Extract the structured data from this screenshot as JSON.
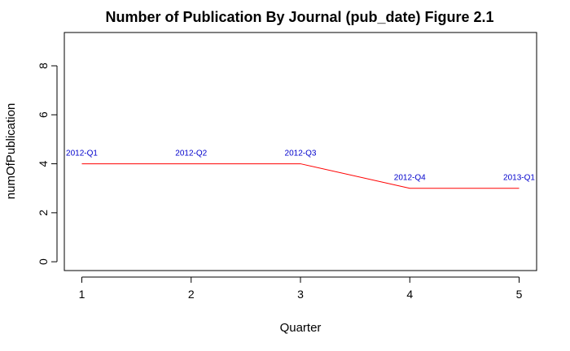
{
  "chart_data": {
    "type": "line",
    "title": "Number of Publication By Journal (pub_date) Figure 2.1",
    "xlabel": "Quarter",
    "ylabel": "numOfPublication",
    "x": [
      1,
      2,
      3,
      4,
      5
    ],
    "values": [
      4,
      4,
      4,
      3,
      3
    ],
    "point_labels": [
      "2012-Q1",
      "2012-Q2",
      "2012-Q3",
      "2012-Q4",
      "2013-Q1"
    ],
    "x_ticks": [
      1,
      2,
      3,
      4,
      5
    ],
    "x_tick_labels": [
      "1",
      "2",
      "3",
      "4",
      "5"
    ],
    "y_ticks": [
      0,
      2,
      4,
      6,
      8
    ],
    "y_tick_labels": [
      "0",
      "2",
      "4",
      "6",
      "8"
    ],
    "xlim": [
      0.84,
      5.16
    ],
    "ylim": [
      -0.36,
      9.36
    ],
    "line_color": "#ff0000",
    "label_color": "#0000cc",
    "grid": false,
    "legend": "none"
  }
}
